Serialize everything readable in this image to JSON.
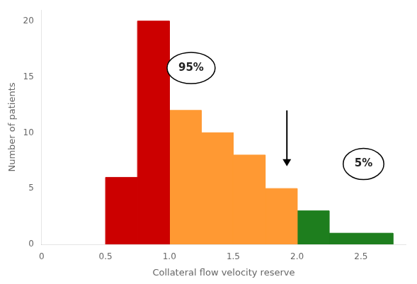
{
  "chart_data": {
    "type": "histogram",
    "bins": [
      0.5,
      0.75,
      1.0,
      1.25,
      1.5,
      1.75,
      2.0,
      2.25,
      2.75
    ],
    "values": [
      6,
      20,
      12,
      10,
      8,
      5,
      3,
      1
    ],
    "colors": [
      "#cc0000",
      "#cc0000",
      "#ff9933",
      "#ff9933",
      "#ff9933",
      "#ff9933",
      "#1e7e1e",
      "#1e7e1e"
    ],
    "xlabel": "Collateral flow velocity reserve",
    "ylabel": "Number of patients",
    "xlim": [
      0,
      2.85
    ],
    "ylim": [
      0,
      21
    ],
    "xticks": [
      0,
      0.5,
      {
        "value": 1.0,
        "label": "1.0"
      },
      1.5,
      {
        "value": 2.0,
        "label": "2.0"
      },
      2.5
    ],
    "yticks": [
      0,
      5,
      10,
      15,
      20
    ],
    "grid": false,
    "annotations": [
      {
        "text": "95%",
        "x": 1.17,
        "y": 15.8
      },
      {
        "text": "5%",
        "x": 2.52,
        "y": 7.2
      }
    ],
    "arrows": [
      {
        "x": 1.92,
        "y_from": 12.0,
        "y_to": 7.0
      }
    ]
  }
}
